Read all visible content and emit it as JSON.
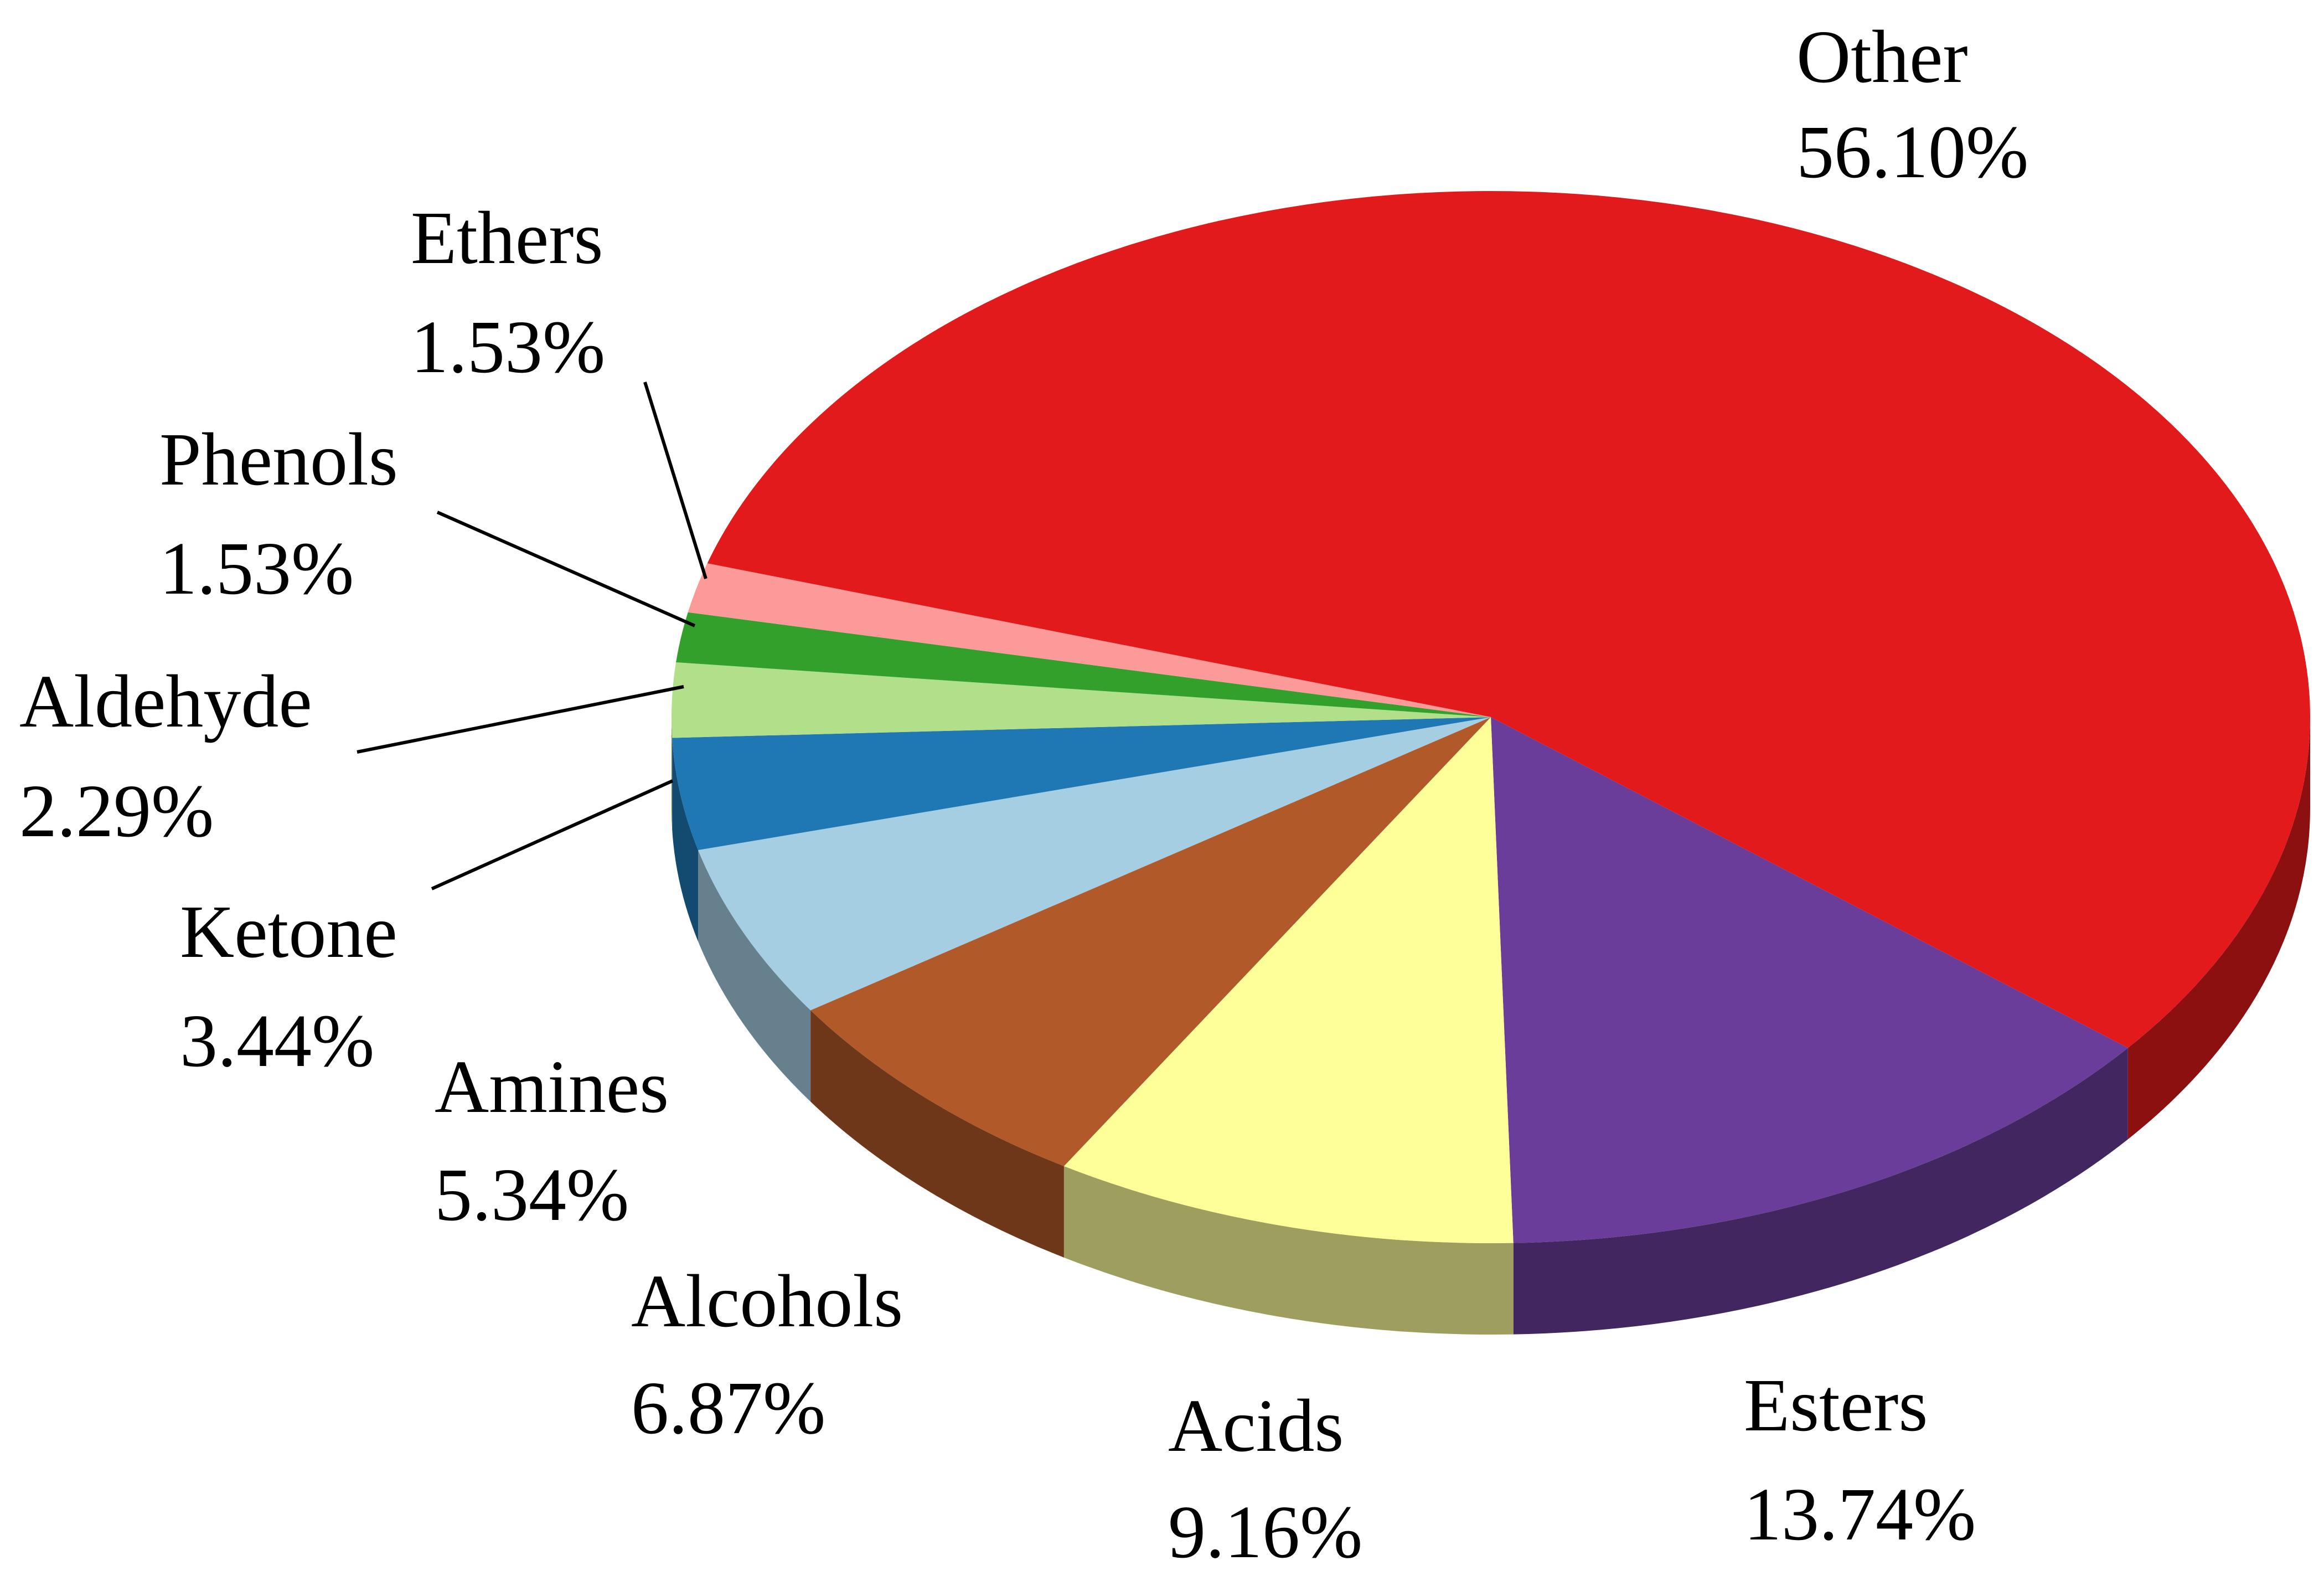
{
  "chart_data": {
    "type": "pie",
    "title": "",
    "slices": [
      {
        "name": "Other",
        "label": "56.10%",
        "value": 56.1,
        "color": "#E31A1C"
      },
      {
        "name": "Esters",
        "label": "13.74%",
        "value": 13.74,
        "color": "#6A3D9A"
      },
      {
        "name": "Acids",
        "label": "9.16%",
        "value": 9.16,
        "color": "#FFFF99"
      },
      {
        "name": "Alcohols",
        "label": "6.87%",
        "value": 6.87,
        "color": "#B15928"
      },
      {
        "name": "Amines",
        "label": "5.34%",
        "value": 5.34,
        "color": "#A6CEE3"
      },
      {
        "name": "Ketone",
        "label": "3.44%",
        "value": 3.44,
        "color": "#1F78B4"
      },
      {
        "name": "Aldehyde",
        "label": "2.29%",
        "value": 2.29,
        "color": "#B2DF8A"
      },
      {
        "name": "Phenols",
        "label": "1.53%",
        "value": 1.53,
        "color": "#33A02C"
      },
      {
        "name": "Ethers",
        "label": "1.53%",
        "value": 1.53,
        "color": "#FB9A99"
      }
    ],
    "style": "3d-tilted",
    "legend": "none"
  }
}
